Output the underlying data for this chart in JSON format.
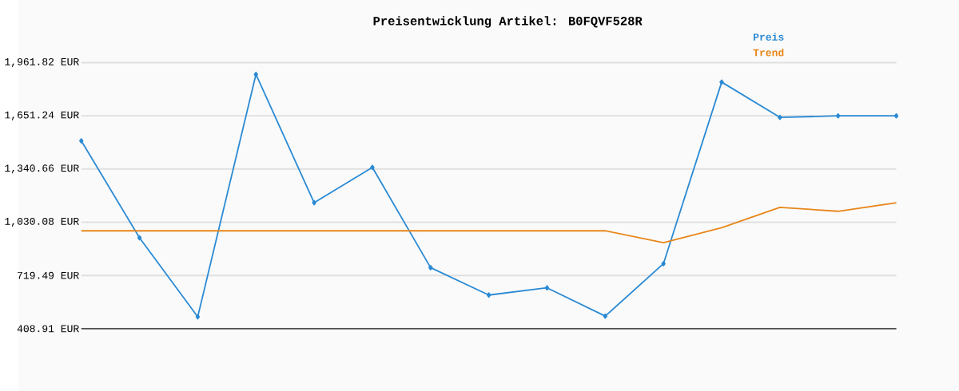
{
  "chart_data": {
    "type": "line",
    "title": "Preisentwicklung Artikel: B0FQVF528R",
    "categories": [
      null,
      null,
      null,
      null,
      null,
      null,
      null,
      null,
      null,
      null,
      null,
      null,
      null,
      null,
      null
    ],
    "series": [
      {
        "name": "Preis",
        "color": "#2a8ad4",
        "marker": "diamond",
        "values": [
          1505,
          939,
          478,
          1893,
          1144,
          1350,
          765,
          605,
          647,
          482,
          788,
          1848,
          1642,
          1651,
          1651
        ]
      },
      {
        "name": "Trend",
        "color": "#e8861a",
        "marker": "none",
        "values": [
          980,
          980,
          980,
          980,
          980,
          980,
          980,
          980,
          980,
          980,
          911,
          998,
          1117,
          1094,
          1144
        ]
      }
    ],
    "ylim": [
      408.91,
      1961.82
    ],
    "yticks": [
      {
        "value": 408.91,
        "label": "408.91 EUR"
      },
      {
        "value": 719.49,
        "label": "719.49 EUR"
      },
      {
        "value": 1030.08,
        "label": "1,030.08 EUR"
      },
      {
        "value": 1340.66,
        "label": "1,340.66 EUR"
      },
      {
        "value": 1651.24,
        "label": "1,651.24 EUR"
      },
      {
        "value": 1961.82,
        "label": "1,961.82 EUR"
      }
    ],
    "grid": "y",
    "legend": "top right"
  }
}
